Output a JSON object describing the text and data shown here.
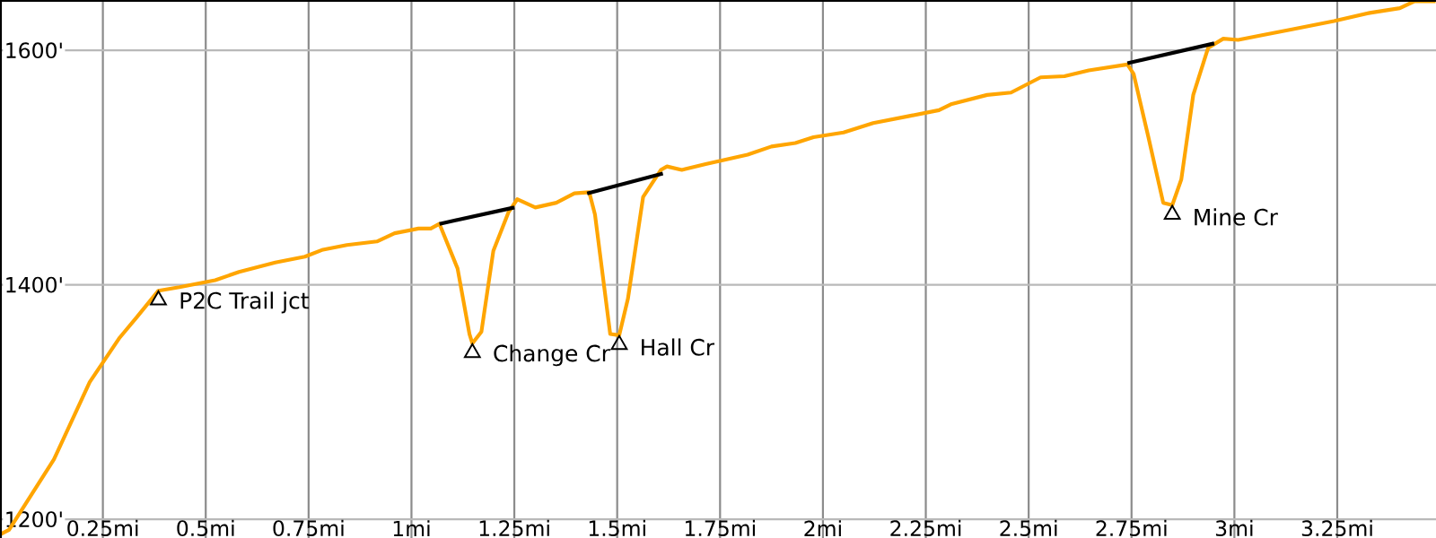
{
  "chart_data": {
    "type": "line",
    "xlim": [
      0,
      3.49
    ],
    "ylim": [
      1184,
      1643
    ],
    "xticks": [
      {
        "value": 0.25,
        "label": "0.25mi"
      },
      {
        "value": 0.5,
        "label": "0.5mi"
      },
      {
        "value": 0.75,
        "label": "0.75mi"
      },
      {
        "value": 1,
        "label": "1mi"
      },
      {
        "value": 1.25,
        "label": "1.25mi"
      },
      {
        "value": 1.5,
        "label": "1.5mi"
      },
      {
        "value": 1.75,
        "label": "1.75mi"
      },
      {
        "value": 2,
        "label": "2mi"
      },
      {
        "value": 2.25,
        "label": "2.25mi"
      },
      {
        "value": 2.5,
        "label": "2.5mi"
      },
      {
        "value": 2.75,
        "label": "2.75mi"
      },
      {
        "value": 3,
        "label": "3mi"
      },
      {
        "value": 3.25,
        "label": "3.25mi"
      }
    ],
    "yticks": [
      {
        "value": 1200,
        "label": "1200'"
      },
      {
        "value": 1400,
        "label": "1400'"
      },
      {
        "value": 1600,
        "label": "1600'"
      }
    ],
    "grid": true,
    "series": [
      {
        "color": "#ffa500",
        "marker": "none",
        "x": [
          0,
          0.022,
          0.131,
          0.218,
          0.291,
          0.334,
          0.385,
          0.436,
          0.523,
          0.581,
          0.669,
          0.741,
          0.785,
          0.843,
          0.916,
          0.959,
          1.017,
          1.047,
          1.068,
          1.112,
          1.141,
          1.148,
          1.17,
          1.199,
          1.236,
          1.257,
          1.301,
          1.352,
          1.396,
          1.432,
          1.446,
          1.483,
          1.505,
          1.526,
          1.563,
          1.606,
          1.621,
          1.657,
          1.715,
          1.817,
          1.875,
          1.933,
          1.977,
          2.05,
          2.122,
          2.21,
          2.282,
          2.311,
          2.399,
          2.457,
          2.529,
          2.587,
          2.646,
          2.74,
          2.755,
          2.791,
          2.827,
          2.849,
          2.871,
          2.9,
          2.936,
          2.973,
          3.009,
          3.067,
          3.14,
          3.242,
          3.329,
          3.402,
          3.438,
          3.489
        ],
        "values": [
          1187,
          1191,
          1251,
          1317,
          1355,
          1373,
          1395,
          1398,
          1404,
          1411,
          1419,
          1424,
          1430,
          1434,
          1437,
          1444,
          1448,
          1448,
          1452,
          1414,
          1358,
          1350,
          1360,
          1429,
          1462,
          1473,
          1466,
          1470,
          1478,
          1479,
          1460,
          1358,
          1357,
          1388,
          1475,
          1498,
          1501,
          1498,
          1503,
          1511,
          1518,
          1521,
          1526,
          1530,
          1538,
          1544,
          1549,
          1554,
          1562,
          1564,
          1577,
          1578,
          1583,
          1588,
          1580,
          1526,
          1470,
          1468,
          1490,
          1562,
          1602,
          1610,
          1609,
          1613,
          1618,
          1625,
          1632,
          1636,
          1642,
          1642
        ]
      },
      {
        "color": "#000000",
        "marker": "none",
        "x": [
          1.068,
          1.25
        ],
        "values": [
          1452,
          1466
        ]
      },
      {
        "color": "#000000",
        "marker": "none",
        "x": [
          1.427,
          1.611
        ],
        "values": [
          1478,
          1495
        ]
      },
      {
        "color": "#000000",
        "marker": "none",
        "x": [
          2.74,
          2.951
        ],
        "values": [
          1589,
          1606
        ]
      },
      {
        "type": "scatter",
        "color": "#000000",
        "marker": "triangle",
        "x": [
          0.385,
          1.148,
          1.505,
          2.849
        ],
        "values": [
          1387,
          1342,
          1349,
          1460
        ]
      }
    ],
    "annotations": [
      {
        "text": "P2C Trail jct",
        "x": 0.385,
        "y": 1387
      },
      {
        "text": "Change Cr",
        "x": 1.148,
        "y": 1342
      },
      {
        "text": "Hall Cr",
        "x": 1.505,
        "y": 1349
      },
      {
        "text": "Mine Cr",
        "x": 2.849,
        "y": 1460
      }
    ]
  }
}
